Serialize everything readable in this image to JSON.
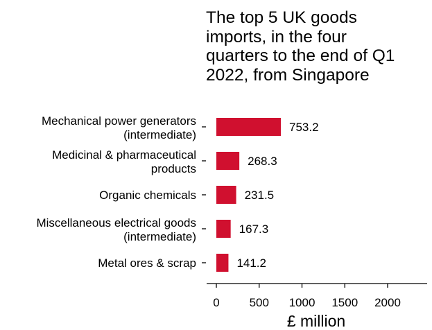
{
  "chart_data": {
    "type": "bar",
    "orientation": "horizontal",
    "title": "The top 5 UK goods\nimports, in the four\nquarters to the end of Q1\n2022, from Singapore",
    "categories": [
      [
        "Mechanical power generators",
        "(intermediate)"
      ],
      [
        "Medicinal & pharmaceutical",
        "products"
      ],
      [
        "Organic chemicals"
      ],
      [
        "Miscellaneous electrical goods",
        "(intermediate)"
      ],
      [
        "Metal ores & scrap"
      ]
    ],
    "values": [
      753.2,
      268.3,
      231.5,
      167.3,
      141.2
    ],
    "value_labels": [
      "753.2",
      "268.3",
      "231.5",
      "167.3",
      "141.2"
    ],
    "xlabel": "£ million",
    "xlim": [
      0,
      2400
    ],
    "xticks": [
      0,
      500,
      1000,
      1500,
      2000
    ],
    "xtick_labels": [
      "0",
      "500",
      "1000",
      "1500",
      "2000"
    ],
    "bar_color": "#d0102f",
    "grid": false
  }
}
